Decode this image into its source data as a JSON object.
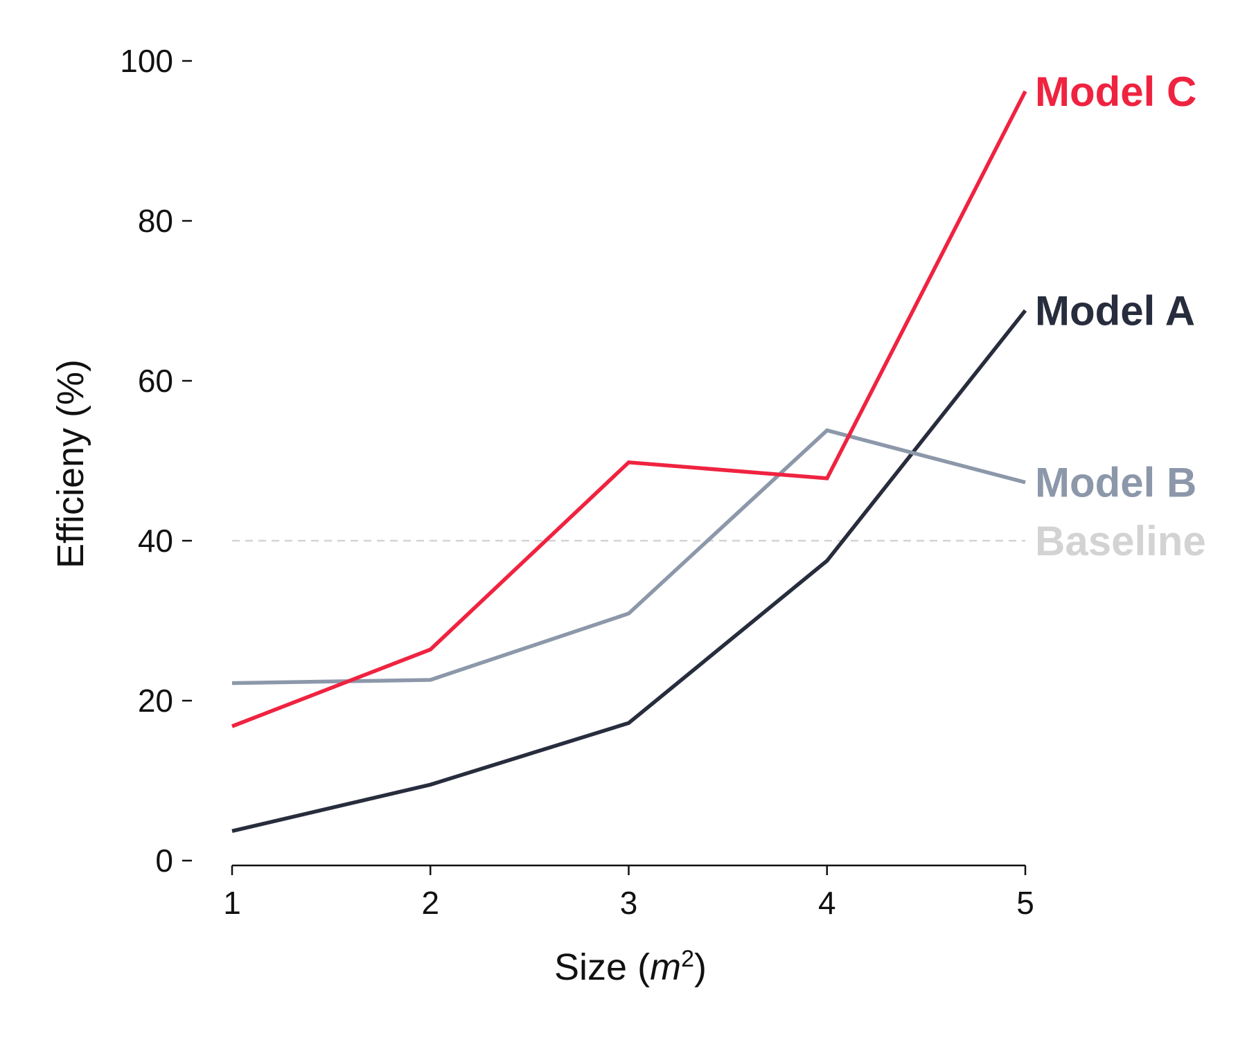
{
  "chart_data": {
    "type": "line",
    "title": "",
    "xlabel": {
      "prefix": "Size (",
      "var": "m",
      "sup": "2",
      "suffix": ")"
    },
    "ylabel": "Efficieny (%)",
    "xlim": [
      1,
      5
    ],
    "ylim": [
      0,
      100
    ],
    "x": [
      1,
      2,
      3,
      4,
      5
    ],
    "x_ticks": [
      "1",
      "2",
      "3",
      "4",
      "5"
    ],
    "y_ticks": [
      0,
      20,
      40,
      60,
      80,
      100
    ],
    "grid": false,
    "legend": "direct labels at line ends",
    "series": [
      {
        "name": "Model A",
        "color": "#272d3d",
        "values": [
          3.7,
          9.5,
          17.2,
          37.5,
          68.8
        ]
      },
      {
        "name": "Model B",
        "color": "#8c98aa",
        "values": [
          22.2,
          22.6,
          30.9,
          53.8,
          47.3
        ]
      },
      {
        "name": "Model C",
        "color": "#ef2340",
        "values": [
          16.8,
          26.4,
          49.8,
          47.8,
          96.2
        ]
      }
    ],
    "baseline": {
      "name": "Baseline",
      "value": 40,
      "color": "#d3d3d3"
    }
  }
}
